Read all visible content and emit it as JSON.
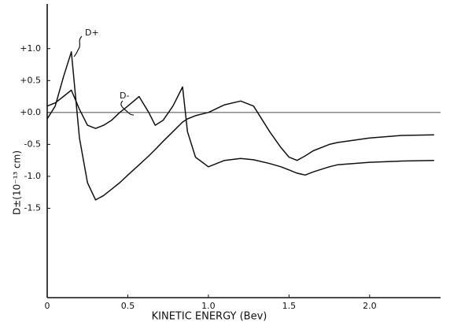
{
  "chart_data": {
    "type": "line",
    "xlabel": "KINETIC  ENERGY (Bev)",
    "ylabel": "D±(10⁻¹³ cm)",
    "x": [
      0,
      0.05,
      0.1,
      0.15,
      0.2,
      0.25,
      0.3,
      0.35,
      0.4,
      0.45,
      0.5,
      0.57,
      0.63,
      0.67,
      0.72,
      0.78,
      0.84,
      0.87,
      0.92,
      1.0,
      1.1,
      1.2,
      1.28,
      1.38,
      1.45,
      1.5,
      1.55,
      1.6,
      1.65,
      1.75,
      1.8,
      2.0,
      2.2,
      2.4
    ],
    "series": [
      {
        "name": "D+",
        "color": "#111111",
        "values": [
          -0.1,
          0.1,
          0.55,
          0.95,
          -0.4,
          -1.1,
          -1.37,
          -1.3,
          -1.2,
          -1.1,
          -0.98,
          -0.82,
          -0.68,
          -0.58,
          -0.45,
          -0.3,
          -0.15,
          -0.1,
          -0.05,
          0.0,
          0.12,
          0.18,
          0.1,
          -0.3,
          -0.55,
          -0.7,
          -0.75,
          -0.68,
          -0.6,
          -0.5,
          -0.47,
          -0.4,
          -0.36,
          -0.35
        ]
      },
      {
        "name": "D-",
        "color": "#111111",
        "values": [
          0.1,
          0.15,
          0.25,
          0.35,
          0.05,
          -0.2,
          -0.25,
          -0.2,
          -0.12,
          0.0,
          0.1,
          0.25,
          0.0,
          -0.2,
          -0.12,
          0.1,
          0.4,
          -0.3,
          -0.7,
          -0.85,
          -0.75,
          -0.72,
          -0.74,
          -0.8,
          -0.85,
          -0.9,
          -0.95,
          -0.98,
          -0.93,
          -0.85,
          -0.82,
          -0.78,
          -0.76,
          -0.75
        ]
      }
    ],
    "xlim": [
      0,
      2.44
    ],
    "ylim": [
      -2.9,
      1.7
    ],
    "xticks": [
      0,
      0.5,
      {
        "value": 1,
        "label": "1.0"
      },
      1.5,
      {
        "value": 2,
        "label": "2.0"
      }
    ],
    "yticks": [
      {
        "value": 1,
        "label": "+1.0"
      },
      {
        "value": 0.5,
        "label": "+0.5"
      },
      {
        "value": 0,
        "label": "+0.0"
      },
      {
        "value": -0.5,
        "label": "-0.5"
      },
      {
        "value": -1,
        "label": "-1.0"
      },
      {
        "value": -1.5,
        "label": "-1.5"
      }
    ],
    "grid": false
  }
}
